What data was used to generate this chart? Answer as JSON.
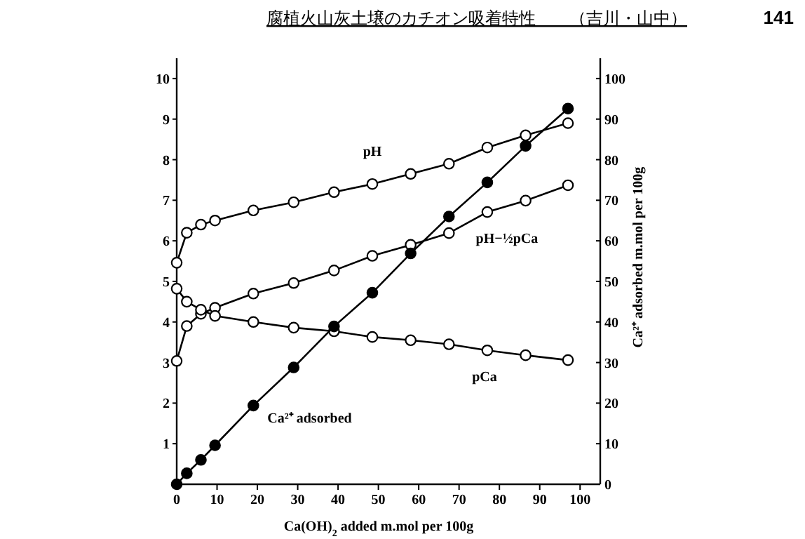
{
  "chart_data": {
    "type": "line",
    "title": "腐植火山灰土壌のカチオン吸着特性　　（吉川・山中）",
    "annotations": [
      "141"
    ],
    "xlabel": "Ca(OH)$_{2}$ added m.mol per 100g",
    "y2label": "Ca²⁺ adsorbed m.mol per 100g",
    "x": [
      0,
      2.5,
      6,
      9.5,
      19,
      29,
      39,
      48.5,
      58,
      67.5,
      77,
      86.5,
      97
    ],
    "series": [
      {
        "name": "pH",
        "color": "#000000",
        "values": [
          5.46,
          6.2,
          6.4,
          6.5,
          6.75,
          6.95,
          7.2,
          7.4,
          7.65,
          7.9,
          8.3,
          8.6,
          8.9
        ]
      },
      {
        "name": "pH−½pCa",
        "color": "#000000",
        "values": [
          3.04,
          3.9,
          4.2,
          4.35,
          4.7,
          4.96,
          5.27,
          5.63,
          5.9,
          6.19,
          6.71,
          6.99,
          7.37
        ]
      },
      {
        "name": "pCa",
        "color": "#000000",
        "values": [
          4.82,
          4.5,
          4.3,
          4.15,
          4.0,
          3.86,
          3.77,
          3.63,
          3.55,
          3.45,
          3.3,
          3.18,
          3.06
        ]
      },
      {
        "name": "Ca²⁺ adsorbed",
        "color": "#000000",
        "axis": "y2",
        "values": [
          0,
          2.7,
          6,
          9.6,
          19.4,
          28.8,
          38.9,
          47.2,
          56.9,
          66,
          74.4,
          83.4,
          92.6
        ]
      }
    ],
    "xlim": [
      0,
      105
    ],
    "ylim": [
      0,
      10.5
    ],
    "y2lim": [
      0,
      105
    ],
    "xticks": [
      0,
      10,
      20,
      30,
      40,
      50,
      60,
      70,
      80,
      90,
      100
    ],
    "yticks": [
      1,
      2,
      3,
      4,
      5,
      6,
      7,
      8,
      9,
      10
    ],
    "y2ticks": [
      0,
      10,
      20,
      30,
      40,
      50,
      60,
      70,
      80,
      90,
      100
    ],
    "marker": "circle",
    "grid": false,
    "legend": false
  }
}
